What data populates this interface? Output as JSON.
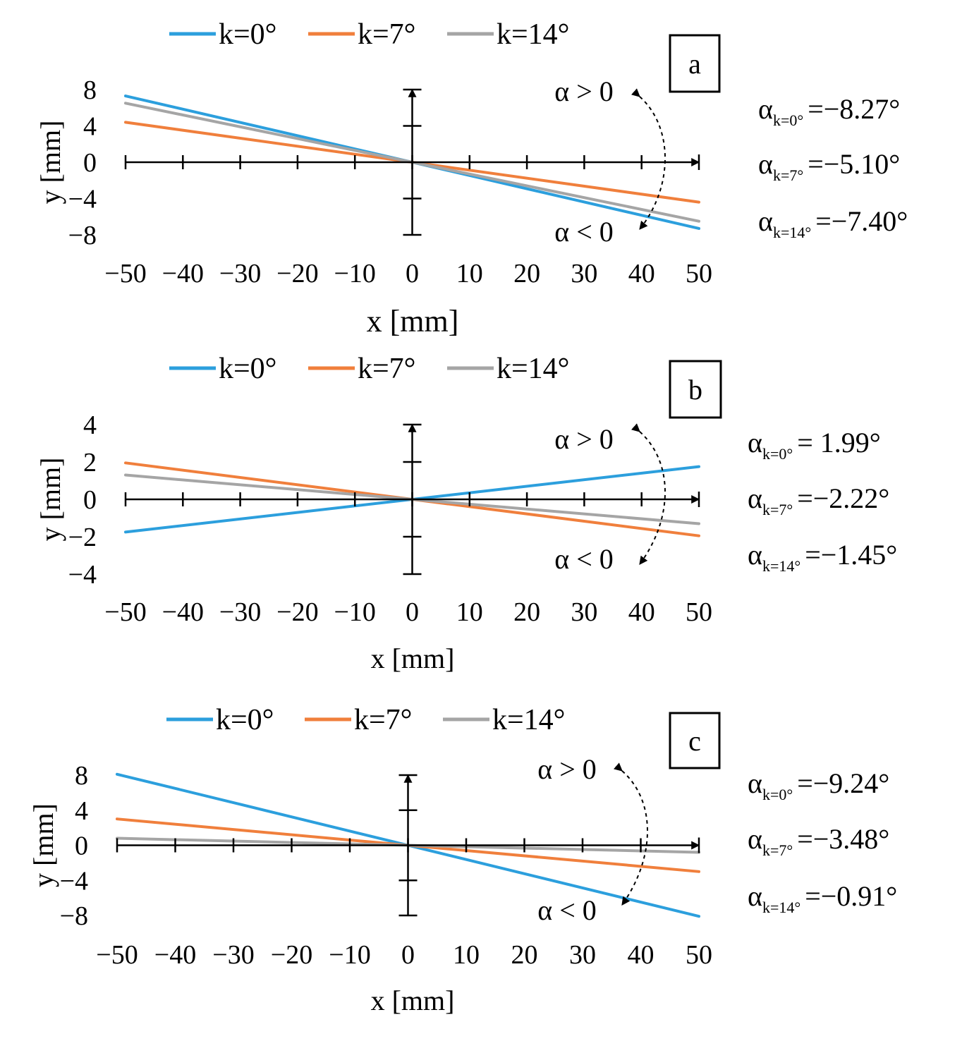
{
  "chart_data": [
    {
      "panel_label": "a",
      "type": "line",
      "xlabel": "x [mm]",
      "ylabel": "y [mm]",
      "xlim": [
        -50,
        50
      ],
      "ylim": [
        -8,
        8
      ],
      "x_ticks": [
        -50,
        -40,
        -30,
        -20,
        -10,
        0,
        10,
        20,
        30,
        40,
        50
      ],
      "x_tick_labels": [
        "−50",
        "−40",
        "−30",
        "−20",
        "−10",
        "0",
        "10",
        "20",
        "30",
        "40",
        "50"
      ],
      "y_ticks": [
        8,
        4,
        0,
        -4,
        -8
      ],
      "y_tick_labels": [
        "8",
        "4",
        "0",
        "−4",
        "−8"
      ],
      "legend": [
        "k=0°",
        "k=7°",
        "k=14°"
      ],
      "series": [
        {
          "name": "k=0°",
          "color": "#2c9fdd",
          "x": [
            -50,
            50
          ],
          "y": [
            7.3,
            -7.3
          ]
        },
        {
          "name": "k=7°",
          "color": "#f07f3c",
          "x": [
            -50,
            50
          ],
          "y": [
            4.4,
            -4.4
          ]
        },
        {
          "name": "k=14°",
          "color": "#a5a5a5",
          "x": [
            -50,
            50
          ],
          "y": [
            6.5,
            -6.5
          ]
        }
      ],
      "annotations": {
        "alpha_pos": "α > 0",
        "alpha_neg": "α < 0"
      },
      "results": [
        {
          "sub": "k=0°",
          "value": "=−8.27°"
        },
        {
          "sub": "k=7°",
          "value": "=−5.10°"
        },
        {
          "sub": "k=14°",
          "value": "=−7.40°"
        }
      ]
    },
    {
      "panel_label": "b",
      "type": "line",
      "xlabel": "x [mm]",
      "ylabel": "y [mm]",
      "xlim": [
        -50,
        50
      ],
      "ylim": [
        -4,
        4
      ],
      "x_ticks": [
        -50,
        -40,
        -30,
        -20,
        -10,
        0,
        10,
        20,
        30,
        40,
        50
      ],
      "x_tick_labels": [
        "−50",
        "−40",
        "−30",
        "−20",
        "−10",
        "0",
        "10",
        "20",
        "30",
        "40",
        "50"
      ],
      "y_ticks": [
        4,
        2,
        0,
        -2,
        -4
      ],
      "y_tick_labels": [
        "4",
        "2",
        "0",
        "−2",
        "−4"
      ],
      "legend": [
        "k=0°",
        "k=7°",
        "k=14°"
      ],
      "series": [
        {
          "name": "k=0°",
          "color": "#2c9fdd",
          "x": [
            -50,
            50
          ],
          "y": [
            -1.75,
            1.75
          ]
        },
        {
          "name": "k=7°",
          "color": "#f07f3c",
          "x": [
            -50,
            50
          ],
          "y": [
            1.95,
            -1.95
          ]
        },
        {
          "name": "k=14°",
          "color": "#a5a5a5",
          "x": [
            -50,
            50
          ],
          "y": [
            1.3,
            -1.3
          ]
        }
      ],
      "annotations": {
        "alpha_pos": "α > 0",
        "alpha_neg": "α < 0"
      },
      "results": [
        {
          "sub": "k=0°",
          "value": "= 1.99°"
        },
        {
          "sub": "k=7°",
          "value": "=−2.22°"
        },
        {
          "sub": "k=14°",
          "value": "=−1.45°"
        }
      ]
    },
    {
      "panel_label": "c",
      "type": "line",
      "xlabel": "x [mm]",
      "ylabel": "y [mm]",
      "xlim": [
        -50,
        50
      ],
      "ylim": [
        -8,
        8
      ],
      "x_ticks": [
        -50,
        -40,
        -30,
        -20,
        -10,
        0,
        10,
        20,
        30,
        40,
        50
      ],
      "x_tick_labels": [
        "−50",
        "−40",
        "−30",
        "−20",
        "−10",
        "0",
        "10",
        "20",
        "30",
        "40",
        "50"
      ],
      "y_ticks": [
        8,
        4,
        0,
        -4,
        -8
      ],
      "y_tick_labels": [
        "8",
        "4",
        "0",
        "−4",
        "−8"
      ],
      "legend": [
        "k=0°",
        "k=7°",
        "k=14°"
      ],
      "series": [
        {
          "name": "k=0°",
          "color": "#2c9fdd",
          "x": [
            -50,
            50
          ],
          "y": [
            8.1,
            -8.1
          ]
        },
        {
          "name": "k=7°",
          "color": "#f07f3c",
          "x": [
            -50,
            50
          ],
          "y": [
            3.0,
            -3.0
          ]
        },
        {
          "name": "k=14°",
          "color": "#a5a5a5",
          "x": [
            -50,
            50
          ],
          "y": [
            0.8,
            -0.8
          ]
        }
      ],
      "annotations": {
        "alpha_pos": "α > 0",
        "alpha_neg": "α < 0"
      },
      "results": [
        {
          "sub": "k=0°",
          "value": "=−9.24°"
        },
        {
          "sub": "k=7°",
          "value": "=−3.48°"
        },
        {
          "sub": "k=14°",
          "value": "=−0.91°"
        }
      ]
    }
  ],
  "symbols": {
    "alpha": "α"
  }
}
